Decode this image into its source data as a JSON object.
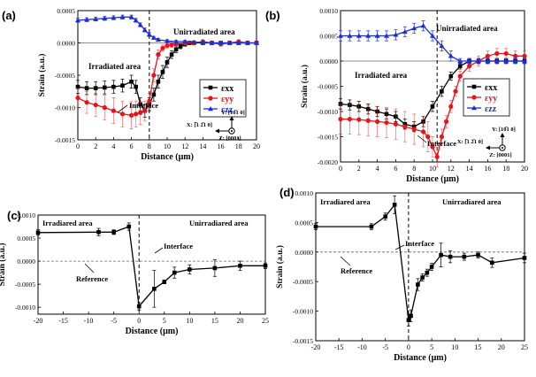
{
  "chart_data": [
    {
      "panel": "(a)",
      "type": "line",
      "xlabel": "Distance (μm)",
      "ylabel": "Strain (a.u.)",
      "xlim": [
        0,
        20
      ],
      "ylim": [
        -0.0015,
        0.0005
      ],
      "x_ticks": [
        "0",
        "2",
        "4",
        "6",
        "8",
        "10",
        "12",
        "14",
        "16",
        "18",
        "20"
      ],
      "y_ticks": [
        "0.0005",
        "0.0000",
        "-0.0005",
        "-0.0010",
        "-0.0015"
      ],
      "x_tick_values": [
        0,
        2,
        4,
        6,
        8,
        10,
        12,
        14,
        16,
        18,
        20
      ],
      "y_tick_values": [
        0.0005,
        0.0,
        -0.0005,
        -0.001,
        -0.0015
      ],
      "interface_x": 8,
      "annotations": {
        "irradiated": "Irradiated area",
        "unirradiated": "Unirradiated area",
        "interface": "Interface"
      },
      "axes_labels": {
        "y": "Y: [10̅1 0]",
        "x": "X: [̅1 2̅1 0]",
        "z": "Z: [0001]"
      },
      "legend": [
        "εxx",
        "εyy",
        "εzz"
      ],
      "series": [
        {
          "name": "εxx",
          "color": "#000000",
          "marker": "square",
          "x": [
            0,
            1,
            2,
            3,
            4,
            5,
            6,
            6.5,
            7,
            7.5,
            8,
            8.5,
            9,
            9.5,
            10,
            10.5,
            11,
            11.5,
            12,
            12.5,
            13,
            14,
            15,
            16,
            17,
            18,
            19,
            20
          ],
          "y": [
            -0.00068,
            -0.0007,
            -0.0007,
            -0.00069,
            -0.00068,
            -0.00066,
            -0.0006,
            -0.00068,
            -0.00095,
            -0.00105,
            -0.00095,
            -0.0008,
            -0.0006,
            -0.00045,
            -0.0003,
            -0.00018,
            -0.0001,
            -5e-05,
            -2e-05,
            0.0,
            0.0,
            0.0,
            0.0,
            0.0,
            0.0,
            0.0,
            0.0,
            0.0
          ],
          "err": [
            0.0001,
            0.0001,
            0.0001,
            0.0001,
            0.0001,
            0.0001,
            0.0001,
            0.0001,
            0.0001,
            0.0001,
            0.0001,
            0.0001,
            0.0001,
            0.0001,
            8e-05,
            6e-05,
            5e-05,
            4e-05,
            3e-05,
            2e-05,
            2e-05,
            2e-05,
            2e-05,
            2e-05,
            2e-05,
            2e-05,
            2e-05,
            2e-05
          ]
        },
        {
          "name": "εyy",
          "color": "#e8121a",
          "marker": "circle",
          "x": [
            0,
            1,
            2,
            3,
            4,
            5,
            6,
            6.5,
            7,
            7.5,
            8,
            8.5,
            9,
            9.5,
            10,
            10.5,
            11,
            12,
            13,
            14,
            15,
            16,
            17,
            18,
            19,
            20
          ],
          "y": [
            -0.00085,
            -0.00092,
            -0.00096,
            -0.001,
            -0.00105,
            -0.0011,
            -0.00112,
            -0.0011,
            -0.00108,
            -0.00105,
            -0.0009,
            -0.0005,
            -0.00018,
            -8e-05,
            -4e-05,
            -3e-05,
            -2e-05,
            0.0,
            0.0,
            2e-05,
            0.0,
            -2e-05,
            0.0,
            2e-05,
            0.0,
            0.0
          ],
          "err": [
            0.00015,
            0.00017,
            0.00018,
            0.00019,
            0.0002,
            0.0002,
            0.00021,
            0.0002,
            0.00018,
            0.00015,
            0.00012,
            0.0001,
            7e-05,
            5e-05,
            4e-05,
            4e-05,
            3e-05,
            3e-05,
            3e-05,
            3e-05,
            3e-05,
            3e-05,
            3e-05,
            3e-05,
            3e-05,
            3e-05
          ]
        },
        {
          "name": "εzz",
          "color": "#1c2fd6",
          "marker": "triangle",
          "x": [
            0,
            1,
            2,
            3,
            4,
            5,
            6,
            6.5,
            7,
            7.5,
            8,
            8.5,
            9,
            10,
            11,
            12,
            13,
            14,
            15,
            16,
            17,
            18,
            19,
            20
          ],
          "y": [
            0.00035,
            0.00036,
            0.00037,
            0.00038,
            0.00039,
            0.0004,
            0.0004,
            0.00035,
            0.00028,
            0.0002,
            0.00013,
            8e-05,
            5e-05,
            3e-05,
            2e-05,
            2e-05,
            1e-05,
            1e-05,
            0.0,
            0.0,
            0.0,
            0.0,
            0.0,
            0.0
          ],
          "err": [
            3e-05,
            3e-05,
            3e-05,
            3e-05,
            3e-05,
            3e-05,
            3e-05,
            3e-05,
            3e-05,
            3e-05,
            3e-05,
            2e-05,
            2e-05,
            2e-05,
            2e-05,
            2e-05,
            2e-05,
            2e-05,
            2e-05,
            2e-05,
            2e-05,
            2e-05,
            2e-05,
            2e-05
          ]
        }
      ]
    },
    {
      "panel": "(b)",
      "type": "line",
      "xlabel": "Distance (μm)",
      "ylabel": "Strain (a.u.)",
      "xlim": [
        0,
        20
      ],
      "ylim": [
        -0.002,
        0.001
      ],
      "x_ticks": [
        "0",
        "2",
        "4",
        "6",
        "8",
        "10",
        "12",
        "14",
        "16",
        "18",
        "20"
      ],
      "y_ticks": [
        "0.0010",
        "0.0005",
        "0.0000",
        "-0.0005",
        "-0.0010",
        "-0.0015",
        "-0.0020"
      ],
      "x_tick_values": [
        0,
        2,
        4,
        6,
        8,
        10,
        12,
        14,
        16,
        18,
        20
      ],
      "y_tick_values": [
        0.001,
        0.0005,
        0.0,
        -0.0005,
        -0.001,
        -0.0015,
        -0.002
      ],
      "interface_x": 10.5,
      "annotations": {
        "irradiated": "Irradiated area",
        "unirradiated": "Unirradiated area",
        "interface": "Interface"
      },
      "axes_labels": {
        "y": "Y: [10̅1 0]",
        "x": "X: [̅1 2̅1 0]",
        "z": "Z: [0001]"
      },
      "legend": [
        "εxx",
        "εyy",
        "εzz"
      ],
      "series": [
        {
          "name": "εxx",
          "color": "#000000",
          "marker": "square",
          "x": [
            0,
            1,
            2,
            3,
            4,
            5,
            6,
            7,
            8,
            9,
            10,
            11,
            12,
            13,
            14,
            15,
            16,
            17,
            18,
            19,
            20
          ],
          "y": [
            -0.00085,
            -0.00087,
            -0.0009,
            -0.00095,
            -0.001,
            -0.00105,
            -0.0011,
            -0.00125,
            -0.0013,
            -0.0012,
            -0.0009,
            -0.0006,
            -0.0003,
            -0.0001,
            0.0,
            0.0,
            0.0,
            0.0,
            0.0,
            0.0,
            0.0
          ],
          "err": [
            0.0001,
            0.0001,
            0.0001,
            0.0001,
            0.0001,
            0.0001,
            0.0001,
            0.0001,
            0.0001,
            0.0001,
            0.0001,
            0.0001,
            8e-05,
            6e-05,
            5e-05,
            5e-05,
            5e-05,
            5e-05,
            5e-05,
            5e-05,
            5e-05
          ]
        },
        {
          "name": "εyy",
          "color": "#e8121a",
          "marker": "circle",
          "x": [
            0,
            1,
            2,
            3,
            4,
            5,
            6,
            7,
            8,
            9,
            9.5,
            10,
            10.5,
            11,
            11.5,
            12,
            12.5,
            13,
            14,
            15,
            16,
            17,
            18,
            19,
            20
          ],
          "y": [
            -0.00115,
            -0.00115,
            -0.00116,
            -0.00118,
            -0.0012,
            -0.00122,
            -0.00125,
            -0.0013,
            -0.00135,
            -0.0014,
            -0.0015,
            -0.0017,
            -0.0019,
            -0.0015,
            -0.0012,
            -0.0009,
            -0.0006,
            -0.0003,
            -0.0001,
            0.0,
            0.0001,
            0.00015,
            0.00015,
            0.0001,
            0.0001
          ],
          "err": [
            0.0003,
            0.0003,
            0.0003,
            0.0003,
            0.0003,
            0.0003,
            0.0003,
            0.0003,
            0.0003,
            0.0003,
            0.0003,
            0.0002,
            0.0002,
            0.00015,
            0.00012,
            0.00012,
            0.0001,
            0.0001,
            0.0001,
            0.0001,
            0.0001,
            0.0001,
            0.0001,
            0.0001,
            0.0001
          ]
        },
        {
          "name": "εzz",
          "color": "#1c2fd6",
          "marker": "triangle",
          "x": [
            0,
            1,
            2,
            3,
            4,
            5,
            6,
            7,
            8,
            9,
            10,
            11,
            12,
            13,
            14,
            15,
            16,
            17,
            18,
            19,
            20
          ],
          "y": [
            0.0005,
            0.0005,
            0.0005,
            0.0005,
            0.0005,
            0.0005,
            0.00052,
            0.00058,
            0.00065,
            0.0007,
            0.0005,
            0.0003,
            0.0001,
            0.0,
            0.0,
            0.0,
            0.0,
            0.0,
            0.0,
            0.0,
            0.0
          ],
          "err": [
            0.0001,
            0.0001,
            0.0001,
            0.0001,
            0.0001,
            0.0001,
            0.0001,
            0.0001,
            0.0001,
            0.0001,
            0.0001,
            0.0001,
            0.0001,
            5e-05,
            5e-05,
            5e-05,
            5e-05,
            5e-05,
            5e-05,
            5e-05,
            5e-05
          ]
        }
      ]
    },
    {
      "panel": "(c)",
      "type": "line",
      "xlabel": "Distance (μm)",
      "ylabel": "Strain (a.u.)",
      "xlim": [
        -20,
        25
      ],
      "ylim": [
        -0.00115,
        0.001
      ],
      "x_ticks": [
        "-20",
        "-15",
        "-10",
        "-5",
        "0",
        "5",
        "10",
        "15",
        "20",
        "25"
      ],
      "y_ticks": [
        "0.0010",
        "0.0005",
        "0.0000",
        "-0.0005",
        "-0.0010"
      ],
      "x_tick_values": [
        -20,
        -15,
        -10,
        -5,
        0,
        5,
        10,
        15,
        20,
        25
      ],
      "y_tick_values": [
        0.001,
        0.0005,
        0.0,
        -0.0005,
        -0.001
      ],
      "interface_x": 0,
      "annotations": {
        "irradiated": "Irradiared area",
        "unirradiated": "Unirradiared area",
        "interface": "Interface",
        "reference": "Reference"
      },
      "series": [
        {
          "name": "strain",
          "color": "#000000",
          "marker": "square",
          "x": [
            -20,
            -8,
            -5,
            -2,
            0,
            3,
            5,
            7,
            10,
            15,
            20,
            25
          ],
          "y": [
            0.00062,
            0.00063,
            0.00063,
            0.00075,
            -0.00098,
            -0.0006,
            -0.00045,
            -0.00025,
            -0.00018,
            -0.00015,
            -0.0001,
            -0.0001
          ],
          "err": [
            6e-05,
            8e-05,
            5e-05,
            8e-05,
            8e-05,
            0.0004,
            4e-05,
            0.00012,
            0.0001,
            0.00018,
            0.0001,
            6e-05
          ]
        }
      ]
    },
    {
      "panel": "(d)",
      "type": "line",
      "xlabel": "Distance (μm)",
      "ylabel": "Strain (a.u.)",
      "xlim": [
        -20,
        25
      ],
      "ylim": [
        -0.0015,
        0.001
      ],
      "x_ticks": [
        "-20",
        "-15",
        "-10",
        "-5",
        "0",
        "5",
        "10",
        "15",
        "20",
        "25"
      ],
      "y_ticks": [
        "0.0010",
        "0.0005",
        "0.0000",
        "-0.0005",
        "-0.0010",
        "-0.0015"
      ],
      "x_tick_values": [
        -20,
        -15,
        -10,
        -5,
        0,
        5,
        10,
        15,
        20,
        25
      ],
      "y_tick_values": [
        0.001,
        0.0005,
        0.0,
        -0.0005,
        -0.001,
        -0.0015
      ],
      "interface_x": 0,
      "annotations": {
        "irradiated": "Irradiared area",
        "unirradiated": "Unirradiared area",
        "interface": "Interface",
        "reference": "Reference"
      },
      "series": [
        {
          "name": "strain",
          "color": "#000000",
          "marker": "square",
          "x": [
            -20,
            -8,
            -5,
            -3,
            0,
            0.5,
            2,
            3,
            4,
            5,
            7,
            9,
            12,
            15,
            18,
            25
          ],
          "y": [
            0.00043,
            0.00043,
            0.0006,
            0.0008,
            -0.00115,
            -0.00108,
            -0.00055,
            -0.00043,
            -0.00035,
            -0.00025,
            -5e-05,
            -8e-05,
            -8e-05,
            -5e-05,
            -0.00018,
            -0.0001
          ],
          "err": [
            5e-05,
            5e-05,
            6e-05,
            0.00015,
            0.0001,
            0.0001,
            0.0001,
            6e-05,
            6e-05,
            6e-05,
            0.0002,
            0.0001,
            6e-05,
            5e-05,
            8e-05,
            8e-05
          ]
        }
      ]
    }
  ]
}
